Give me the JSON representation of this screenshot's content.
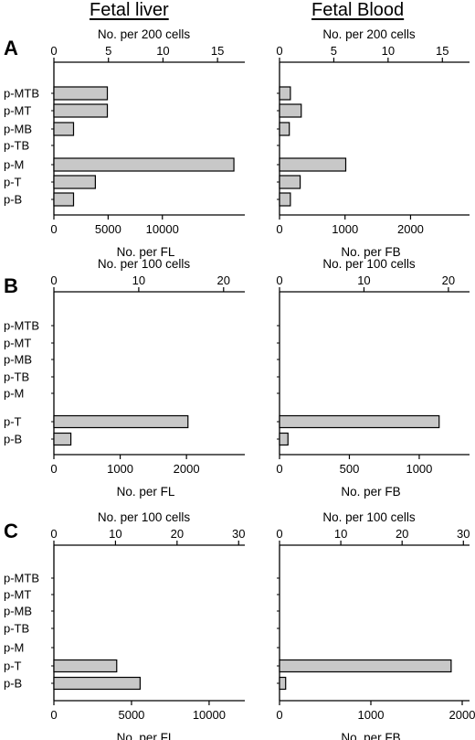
{
  "columns": [
    "Fetal liver",
    "Fetal Blood"
  ],
  "colors": {
    "bar_fill": "#c8c8c8",
    "stroke": "#000000"
  },
  "chart_data": [
    {
      "panel": "A",
      "type": "bar",
      "orientation": "horizontal",
      "column": "Fetal liver",
      "categories": [
        "p-MTB",
        "p-MT",
        "p-MB",
        "p-TB",
        "p-M",
        "p-T",
        "p-B"
      ],
      "top_axis": {
        "label": "No. per 200 cells",
        "ticks": [
          0,
          5,
          10,
          15
        ],
        "range": [
          0,
          17.5
        ]
      },
      "bottom_axis": {
        "label": "No. per FL",
        "ticks": [
          0,
          5000,
          10000
        ],
        "range": [
          0,
          17600
        ]
      },
      "values": [
        4.9,
        4.9,
        1.8,
        0,
        16.5,
        3.8,
        1.8
      ]
    },
    {
      "panel": "A",
      "type": "bar",
      "orientation": "horizontal",
      "column": "Fetal Blood",
      "categories": [
        "p-MTB",
        "p-MT",
        "p-MB",
        "p-TB",
        "p-M",
        "p-T",
        "p-B"
      ],
      "top_axis": {
        "label": "No. per 200 cells",
        "ticks": [
          0,
          5,
          10,
          15
        ],
        "range": [
          0,
          17.5
        ]
      },
      "bottom_axis": {
        "label": "No. per FB",
        "ticks": [
          0,
          1000,
          2000
        ],
        "range": [
          0,
          2900
        ]
      },
      "values": [
        1.0,
        2.0,
        0.9,
        0,
        6.1,
        1.9,
        1.0
      ]
    },
    {
      "panel": "B",
      "type": "bar",
      "orientation": "horizontal",
      "column": "Fetal liver",
      "categories": [
        "p-MTB",
        "p-MT",
        "p-MB",
        "p-TB",
        "p-M",
        "p-T",
        "p-B"
      ],
      "top_axis": {
        "label": "No. per 100 cells",
        "ticks": [
          0,
          10,
          20
        ],
        "range": [
          0,
          22.5
        ]
      },
      "bottom_axis": {
        "label": "No. per FL",
        "ticks": [
          0,
          1000,
          2000
        ],
        "range": [
          0,
          2880
        ]
      },
      "values": [
        0,
        0,
        0,
        0,
        0,
        15.8,
        2.0
      ]
    },
    {
      "panel": "B",
      "type": "bar",
      "orientation": "horizontal",
      "column": "Fetal Blood",
      "categories": [
        "p-MTB",
        "p-MT",
        "p-MB",
        "p-TB",
        "p-M",
        "p-T",
        "p-B"
      ],
      "top_axis": {
        "label": "No. per 100 cells",
        "ticks": [
          0,
          10,
          20
        ],
        "range": [
          0,
          22.5
        ]
      },
      "bottom_axis": {
        "label": "No. per FB",
        "ticks": [
          0,
          500,
          1000
        ],
        "range": [
          0,
          1360
        ]
      },
      "values": [
        0,
        0,
        0,
        0,
        0,
        18.9,
        1.0
      ]
    },
    {
      "panel": "C",
      "type": "bar",
      "orientation": "horizontal",
      "column": "Fetal liver",
      "categories": [
        "p-MTB",
        "p-MT",
        "p-MB",
        "p-TB",
        "p-M",
        "p-T",
        "p-B"
      ],
      "top_axis": {
        "label": "No. per 100 cells",
        "ticks": [
          0,
          10,
          20,
          30
        ],
        "range": [
          0,
          31
        ]
      },
      "bottom_axis": {
        "label": "No. per FL",
        "ticks": [
          0,
          5000,
          10000
        ],
        "range": [
          0,
          12300
        ]
      },
      "values": [
        0,
        0,
        0,
        0,
        0,
        10.2,
        14.0
      ]
    },
    {
      "panel": "C",
      "type": "bar",
      "orientation": "horizontal",
      "column": "Fetal Blood",
      "categories": [
        "p-MTB",
        "p-MT",
        "p-MB",
        "p-TB",
        "p-M",
        "p-T",
        "p-B"
      ],
      "top_axis": {
        "label": "No. per 100 cells",
        "ticks": [
          0,
          10,
          20,
          30
        ],
        "range": [
          0,
          31
        ]
      },
      "bottom_axis": {
        "label": "No. per FB",
        "ticks": [
          0,
          1000,
          2000
        ],
        "range": [
          0,
          2080
        ]
      },
      "values": [
        0,
        0,
        0,
        0,
        0,
        28.0,
        1.0
      ]
    }
  ]
}
